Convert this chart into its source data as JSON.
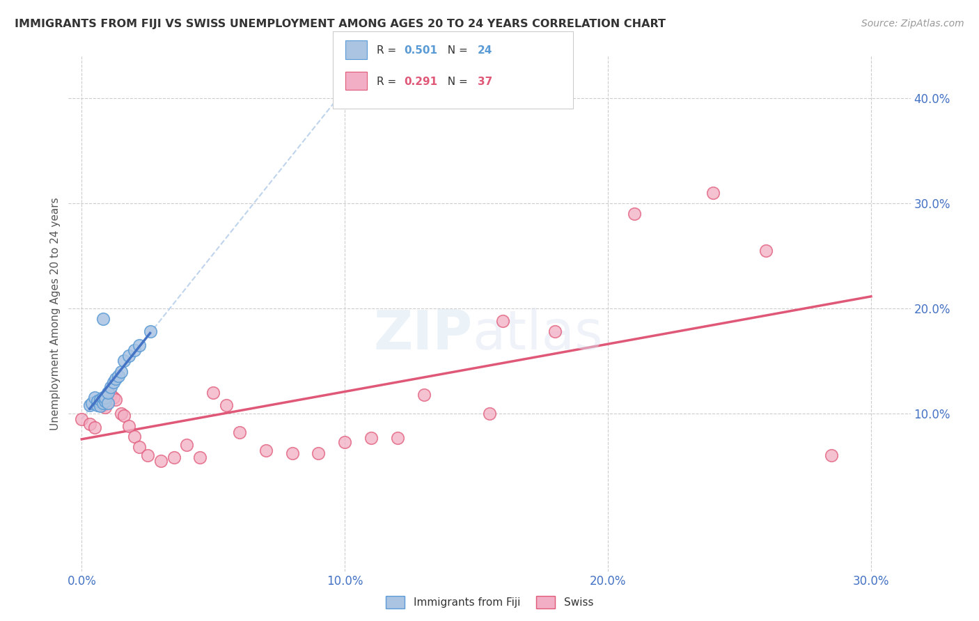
{
  "title": "IMMIGRANTS FROM FIJI VS SWISS UNEMPLOYMENT AMONG AGES 20 TO 24 YEARS CORRELATION CHART",
  "source": "Source: ZipAtlas.com",
  "ylabel": "Unemployment Among Ages 20 to 24 years",
  "xlim": [
    -0.005,
    0.315
  ],
  "ylim": [
    -0.05,
    0.44
  ],
  "xticks": [
    0.0,
    0.05,
    0.1,
    0.15,
    0.2,
    0.25,
    0.3
  ],
  "xtick_labels": [
    "0.0%",
    "",
    "",
    "",
    "",
    "",
    "30.0%"
  ],
  "ytick_vals": [
    0.1,
    0.2,
    0.3,
    0.4
  ],
  "ytick_labels": [
    "10.0%",
    "20.0%",
    "30.0%",
    "40.0%"
  ],
  "fiji_color": "#aac4e2",
  "swiss_color": "#f2aec4",
  "fiji_edge_color": "#5b9bd5",
  "swiss_edge_color": "#e05878",
  "fiji_label": "Immigrants from Fiji",
  "swiss_label": "Swiss",
  "fiji_R": "0.501",
  "fiji_N": "24",
  "swiss_R": "0.291",
  "swiss_N": "37",
  "fiji_trend_color": "#4472c4",
  "swiss_trend_color": "#e05878",
  "fiji_trend_dashed_color": "#b8d0ea",
  "background_color": "#ffffff",
  "fiji_x": [
    0.003,
    0.004,
    0.005,
    0.006,
    0.006,
    0.007,
    0.007,
    0.008,
    0.008,
    0.009,
    0.009,
    0.01,
    0.01,
    0.011,
    0.012,
    0.013,
    0.014,
    0.015,
    0.016,
    0.018,
    0.02,
    0.022,
    0.026,
    0.008
  ],
  "fiji_y": [
    0.108,
    0.11,
    0.115,
    0.108,
    0.112,
    0.107,
    0.113,
    0.11,
    0.115,
    0.112,
    0.115,
    0.11,
    0.12,
    0.125,
    0.13,
    0.133,
    0.136,
    0.14,
    0.15,
    0.155,
    0.16,
    0.165,
    0.178,
    0.19
  ],
  "swiss_x": [
    0.0,
    0.003,
    0.005,
    0.007,
    0.008,
    0.009,
    0.01,
    0.011,
    0.012,
    0.013,
    0.015,
    0.016,
    0.018,
    0.02,
    0.022,
    0.025,
    0.03,
    0.035,
    0.04,
    0.045,
    0.05,
    0.055,
    0.06,
    0.07,
    0.08,
    0.09,
    0.1,
    0.11,
    0.12,
    0.13,
    0.155,
    0.16,
    0.18,
    0.21,
    0.24,
    0.26,
    0.285
  ],
  "swiss_y": [
    0.095,
    0.09,
    0.087,
    0.112,
    0.108,
    0.106,
    0.116,
    0.118,
    0.115,
    0.113,
    0.1,
    0.098,
    0.088,
    0.078,
    0.068,
    0.06,
    0.055,
    0.058,
    0.07,
    0.058,
    0.12,
    0.108,
    0.082,
    0.065,
    0.062,
    0.062,
    0.073,
    0.077,
    0.077,
    0.118,
    0.1,
    0.188,
    0.178,
    0.29,
    0.31,
    0.255,
    0.06
  ]
}
